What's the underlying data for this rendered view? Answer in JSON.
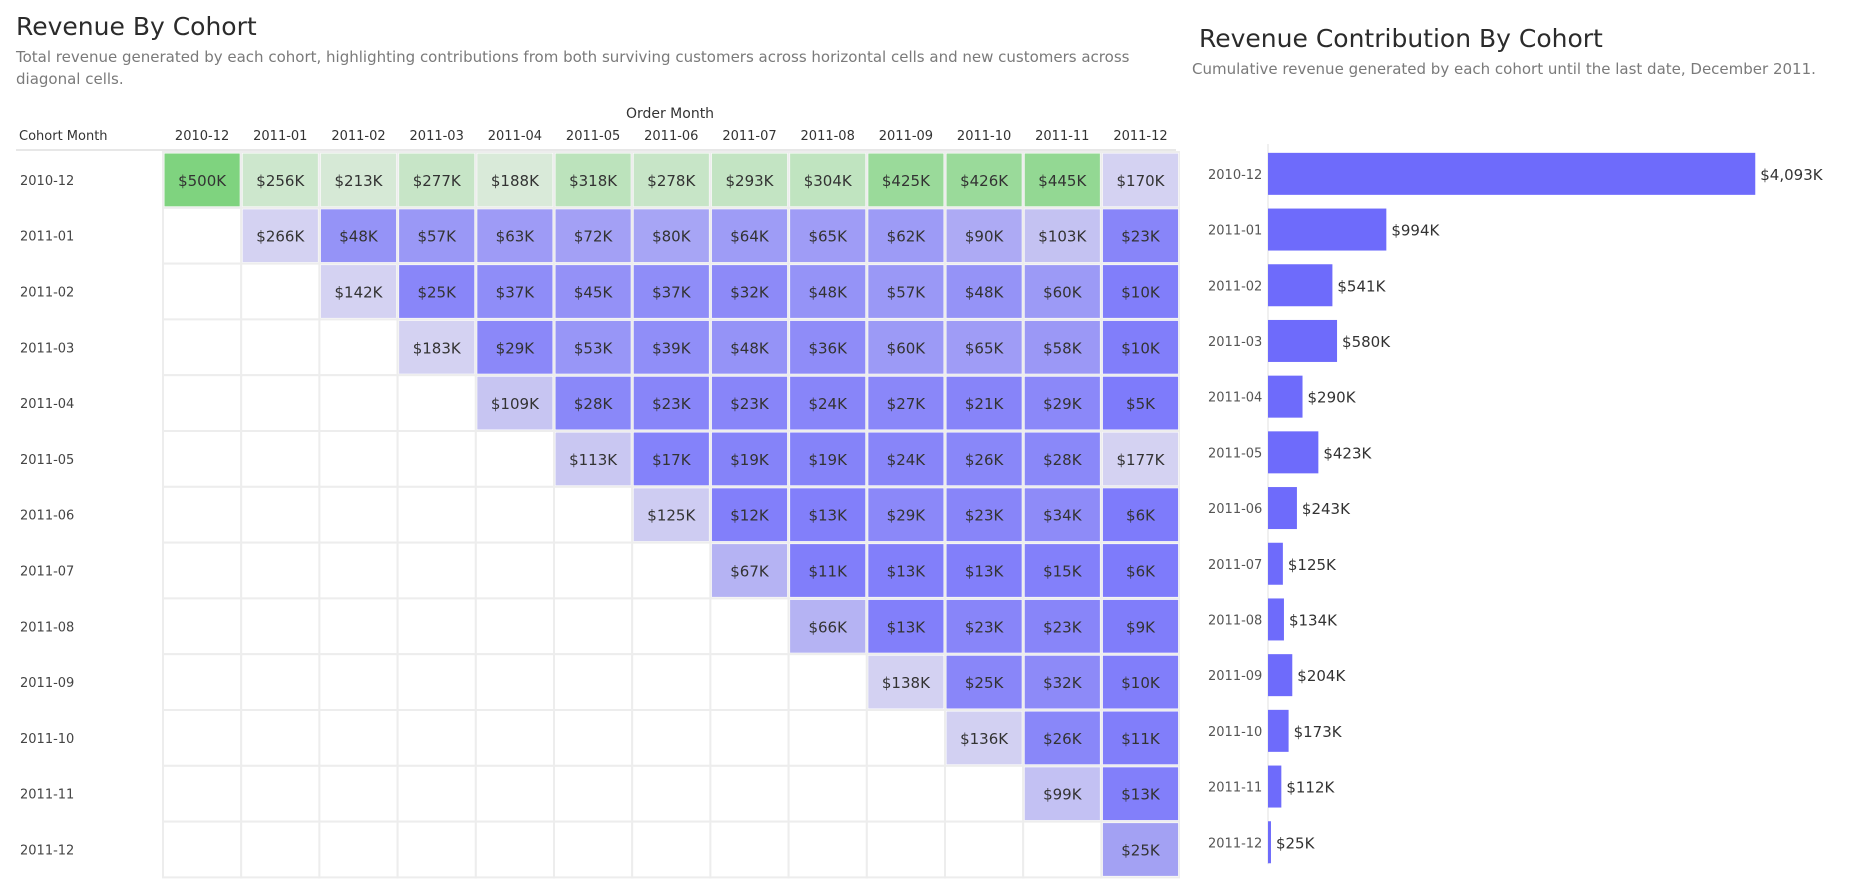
{
  "chart_data": [
    {
      "type": "heatmap",
      "title": "Revenue By Cohort",
      "subtitle": "Total revenue generated by each cohort, highlighting contributions from both surviving customers across horizontal cells and new customers across diagonal cells.",
      "x_axis_title": "Order Month",
      "y_axis_title": "Cohort Month",
      "columns": [
        "2010-12",
        "2011-01",
        "2011-02",
        "2011-03",
        "2011-04",
        "2011-05",
        "2011-06",
        "2011-07",
        "2011-08",
        "2011-09",
        "2011-10",
        "2011-11",
        "2011-12"
      ],
      "rows": [
        "2010-12",
        "2011-01",
        "2011-02",
        "2011-03",
        "2011-04",
        "2011-05",
        "2011-06",
        "2011-07",
        "2011-08",
        "2011-09",
        "2011-10",
        "2011-11",
        "2011-12"
      ],
      "unit": "K",
      "cells": [
        [
          500,
          256,
          213,
          277,
          188,
          318,
          278,
          293,
          304,
          425,
          426,
          445,
          170
        ],
        [
          null,
          266,
          48,
          57,
          63,
          72,
          80,
          64,
          65,
          62,
          90,
          103,
          23
        ],
        [
          null,
          null,
          142,
          25,
          37,
          45,
          37,
          32,
          48,
          57,
          48,
          60,
          10
        ],
        [
          null,
          null,
          null,
          183,
          29,
          53,
          39,
          48,
          36,
          60,
          65,
          58,
          10
        ],
        [
          null,
          null,
          null,
          null,
          109,
          28,
          23,
          23,
          24,
          27,
          21,
          29,
          5
        ],
        [
          null,
          null,
          null,
          null,
          null,
          113,
          17,
          19,
          19,
          24,
          26,
          28,
          177
        ],
        [
          null,
          null,
          null,
          null,
          null,
          null,
          125,
          12,
          13,
          29,
          23,
          34,
          6
        ],
        [
          null,
          null,
          null,
          null,
          null,
          null,
          null,
          67,
          11,
          13,
          13,
          15,
          6
        ],
        [
          null,
          null,
          null,
          null,
          null,
          null,
          null,
          null,
          66,
          13,
          23,
          23,
          9
        ],
        [
          null,
          null,
          null,
          null,
          null,
          null,
          null,
          null,
          null,
          138,
          25,
          32,
          10
        ],
        [
          null,
          null,
          null,
          null,
          null,
          null,
          null,
          null,
          null,
          null,
          136,
          26,
          11
        ],
        [
          null,
          null,
          null,
          null,
          null,
          null,
          null,
          null,
          null,
          null,
          null,
          99,
          13
        ],
        [
          null,
          null,
          null,
          null,
          null,
          null,
          null,
          null,
          null,
          null,
          null,
          null,
          25
        ]
      ],
      "colors": {
        "first_row_high": "#7fd37f",
        "first_row_low": "#d9ead9",
        "diagonal_light": "#d4d2f2",
        "cohort_high": "#7b78fb",
        "cohort_low": "#b2b0f3",
        "grid_line": "#ededed"
      }
    },
    {
      "type": "bar",
      "orientation": "horizontal",
      "title": "Revenue Contribution By Cohort",
      "subtitle": "Cumulative revenue generated by each cohort until the last date, December 2011.",
      "categories": [
        "2010-12",
        "2011-01",
        "2011-02",
        "2011-03",
        "2011-04",
        "2011-05",
        "2011-06",
        "2011-07",
        "2011-08",
        "2011-09",
        "2011-10",
        "2011-11",
        "2011-12"
      ],
      "values": [
        4093,
        994,
        541,
        580,
        290,
        423,
        243,
        125,
        134,
        204,
        173,
        112,
        25
      ],
      "labels": [
        "$4,093K",
        "$994K",
        "$541K",
        "$580K",
        "$290K",
        "$423K",
        "$243K",
        "$125K",
        "$134K",
        "$204K",
        "$173K",
        "$112K",
        "$25K"
      ],
      "unit": "K",
      "xlim": [
        0,
        4200
      ],
      "bar_color": "#6e6bfb"
    }
  ]
}
